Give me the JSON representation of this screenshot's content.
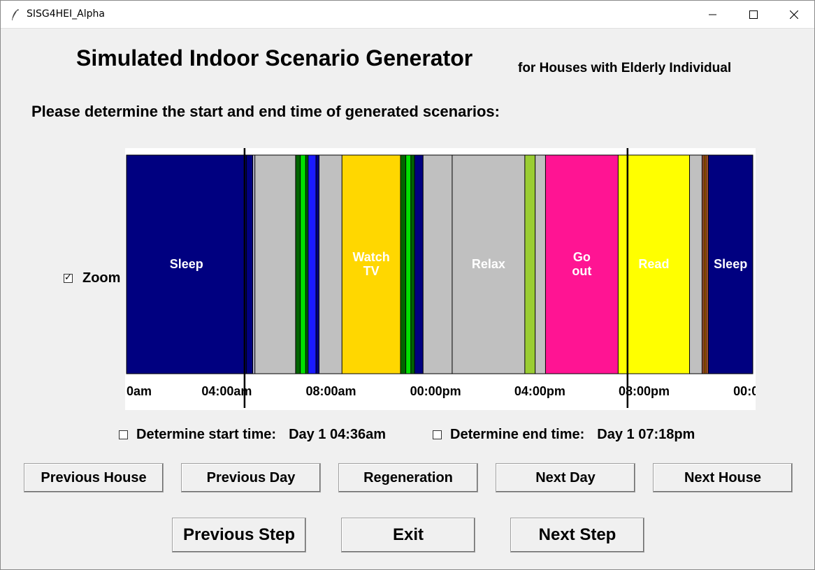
{
  "window": {
    "title": "SISG4HEI_Alpha"
  },
  "header": {
    "title": "Simulated Indoor Scenario Generator",
    "subtitle": "for Houses with Elderly Individual",
    "prompt": "Please determine the start and end time of generated scenarios:"
  },
  "zoom": {
    "label": "Zoom",
    "checked": true
  },
  "timeline": {
    "activities": [
      {
        "label": "Sleep",
        "start": 0,
        "end": 3.83,
        "color": "#000080"
      },
      {
        "label": "",
        "start": 3.83,
        "end": 4.03,
        "color": "#000080"
      },
      {
        "label": "",
        "start": 4.03,
        "end": 4.1,
        "color": "#b3b3cc"
      },
      {
        "label": "",
        "start": 4.1,
        "end": 5.4,
        "color": "#c0c0c0"
      },
      {
        "label": "",
        "start": 5.4,
        "end": 5.55,
        "color": "#006400"
      },
      {
        "label": "",
        "start": 5.55,
        "end": 5.72,
        "color": "#00e000"
      },
      {
        "label": "",
        "start": 5.72,
        "end": 5.8,
        "color": "#006400"
      },
      {
        "label": "",
        "start": 5.8,
        "end": 6.05,
        "color": "#1a1aff"
      },
      {
        "label": "",
        "start": 6.05,
        "end": 6.15,
        "color": "#000080"
      },
      {
        "label": "",
        "start": 6.15,
        "end": 6.88,
        "color": "#c0c0c0"
      },
      {
        "label": "Watch TV",
        "start": 6.88,
        "end": 8.75,
        "color": "#ffd700"
      },
      {
        "label": "",
        "start": 8.75,
        "end": 8.92,
        "color": "#006400"
      },
      {
        "label": "",
        "start": 8.92,
        "end": 9.08,
        "color": "#00e000"
      },
      {
        "label": "",
        "start": 9.08,
        "end": 9.2,
        "color": "#006400"
      },
      {
        "label": "",
        "start": 9.2,
        "end": 9.47,
        "color": "#000080"
      },
      {
        "label": "",
        "start": 9.47,
        "end": 10.4,
        "color": "#c0c0c0"
      },
      {
        "label": "Relax",
        "start": 10.4,
        "end": 12.72,
        "color": "#c0c0c0"
      },
      {
        "label": "",
        "start": 12.72,
        "end": 13.05,
        "color": "#9acd32"
      },
      {
        "label": "",
        "start": 13.05,
        "end": 13.38,
        "color": "#c0c0c0"
      },
      {
        "label": "Go out",
        "start": 13.38,
        "end": 15.7,
        "color": "#ff1493"
      },
      {
        "label": "Read",
        "start": 15.7,
        "end": 17.98,
        "color": "#ffff00"
      },
      {
        "label": "",
        "start": 17.98,
        "end": 18.38,
        "color": "#c0c0c0"
      },
      {
        "label": "",
        "start": 18.38,
        "end": 18.45,
        "color": "#a0522d"
      },
      {
        "label": "",
        "start": 18.45,
        "end": 18.5,
        "color": "#ff8c00"
      },
      {
        "label": "",
        "start": 18.5,
        "end": 18.58,
        "color": "#a0522d"
      },
      {
        "label": "Sleep",
        "start": 18.58,
        "end": 20.0,
        "color": "#000080"
      }
    ],
    "ticks": [
      {
        "label": "0am",
        "hour": 0.0
      },
      {
        "label": "04:00am",
        "hour": 3.2
      },
      {
        "label": "08:00am",
        "hour": 6.53
      },
      {
        "label": "00:00pm",
        "hour": 9.87
      },
      {
        "label": "04:00pm",
        "hour": 13.2
      },
      {
        "label": "08:00pm",
        "hour": 16.53
      },
      {
        "label": "00:0",
        "hour": 19.87
      }
    ],
    "start_marker": 3.77,
    "end_marker": 16.0
  },
  "start_time": {
    "label": "Determine start time:",
    "value": "Day 1  04:36am",
    "checked": false
  },
  "end_time": {
    "label": "Determine end time:",
    "value": "Day 1  07:18pm",
    "checked": false
  },
  "buttons": {
    "previous_house": "Previous House",
    "previous_day": "Previous Day",
    "regeneration": "Regeneration",
    "next_day": "Next Day",
    "next_house": "Next House",
    "previous_step": "Previous Step",
    "exit": "Exit",
    "next_step": "Next Step"
  }
}
